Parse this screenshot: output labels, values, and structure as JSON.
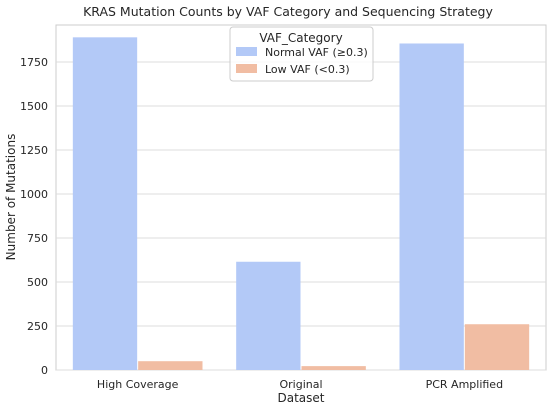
{
  "chart_data": {
    "type": "bar",
    "title": "KRAS Mutation Counts by VAF Category and Sequencing Strategy",
    "xlabel": "Dataset",
    "ylabel": "Number of Mutations",
    "categories": [
      "High Coverage",
      "Original",
      "PCR Amplified"
    ],
    "ylim": [
      0,
      1960
    ],
    "yticks": [
      0,
      250,
      500,
      750,
      1000,
      1250,
      1500,
      1750
    ],
    "ytick_labels": [
      "0",
      "250",
      "500",
      "750",
      "1000",
      "1250",
      "1500",
      "1750"
    ],
    "grid": "horizontal",
    "legend": {
      "title": "VAF_Category",
      "placement": "top-center"
    },
    "series": [
      {
        "name": "Normal VAF (≥0.3)",
        "color": "#b3c9f7",
        "values": [
          1890,
          615,
          1855
        ]
      },
      {
        "name": "Low VAF (<0.3)",
        "color": "#f1bda3",
        "values": [
          50,
          22,
          260
        ]
      }
    ]
  }
}
